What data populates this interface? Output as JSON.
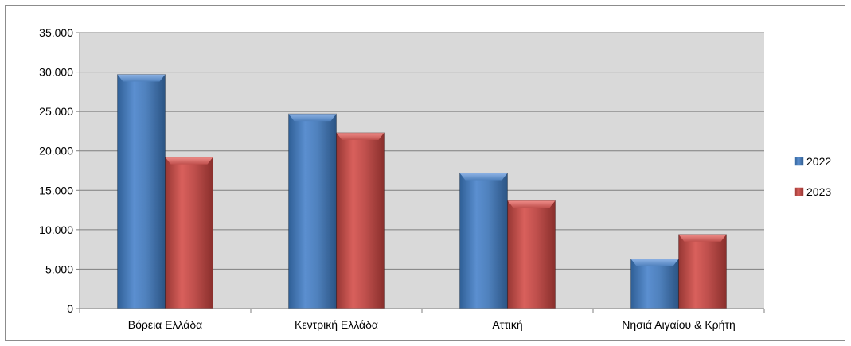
{
  "chart_data": {
    "type": "bar",
    "categories": [
      "Βόρεια Ελλάδα",
      "Κεντρική Ελλάδα",
      "Αττική",
      "Νησιά Αιγαίου & Κρήτη"
    ],
    "series": [
      {
        "name": "2022",
        "values": [
          29700,
          24700,
          17200,
          6300
        ],
        "color": "#4f81bd"
      },
      {
        "name": "2023",
        "values": [
          19200,
          22300,
          13700,
          9400
        ],
        "color": "#c0504d"
      }
    ],
    "ylim": [
      0,
      35000
    ],
    "yticks": [
      0,
      5000,
      10000,
      15000,
      20000,
      25000,
      30000,
      35000
    ],
    "ytick_labels": [
      "0",
      "5.000",
      "10.000",
      "15.000",
      "20.000",
      "25.000",
      "30.000",
      "35.000"
    ],
    "grid": true,
    "legend_position": "right",
    "plot_background": "#d9d9d9"
  }
}
